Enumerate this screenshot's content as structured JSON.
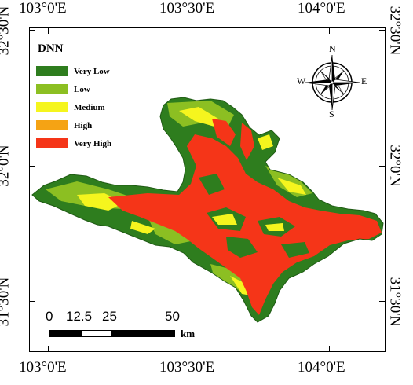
{
  "map": {
    "title": "DNN",
    "legend": [
      {
        "label": "Very Low",
        "color": "#2e7d1e"
      },
      {
        "label": "Low",
        "color": "#8cbf22"
      },
      {
        "label": "Medium",
        "color": "#f5f51e"
      },
      {
        "label": "High",
        "color": "#f5a314"
      },
      {
        "label": "Very High",
        "color": "#f53518"
      }
    ],
    "longitude_ticks": [
      "103°0'E",
      "103°30'E",
      "104°0'E"
    ],
    "latitude_ticks_left": [
      "32°30'N",
      "32°0'N",
      "31°30'N"
    ],
    "latitude_ticks_right": [
      "32°30'N",
      "32°0'N",
      "31°30'N"
    ],
    "scale_bar": {
      "labels": [
        "0",
        "12.5",
        "25",
        "50"
      ],
      "unit": "km"
    },
    "north_arrow": {
      "n": "N",
      "s": "S",
      "e": "E",
      "w": "W"
    }
  }
}
